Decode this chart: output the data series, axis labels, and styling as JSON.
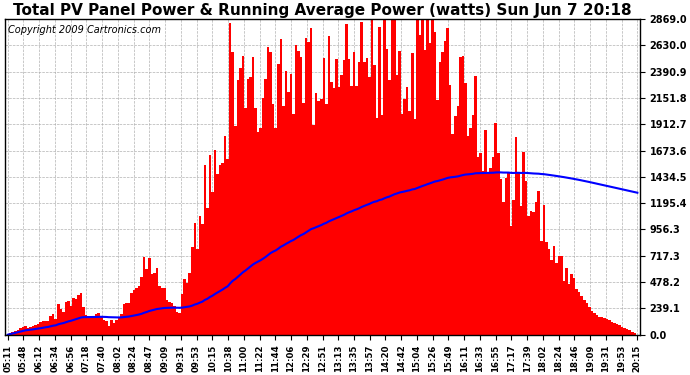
{
  "title": "Total PV Panel Power & Running Average Power (watts) Sun Jun 7 20:18",
  "copyright": "Copyright 2009 Cartronics.com",
  "yticks": [
    0.0,
    239.1,
    478.2,
    717.3,
    956.3,
    1195.4,
    1434.5,
    1673.6,
    1912.7,
    2151.8,
    2390.9,
    2630.0,
    2869.0
  ],
  "ymax": 2869.0,
  "xtick_labels": [
    "05:11",
    "05:48",
    "06:12",
    "06:34",
    "06:56",
    "07:18",
    "07:40",
    "08:02",
    "08:24",
    "08:47",
    "09:09",
    "09:31",
    "09:53",
    "10:15",
    "10:38",
    "11:00",
    "11:22",
    "11:44",
    "12:06",
    "12:29",
    "12:51",
    "13:13",
    "13:35",
    "13:57",
    "14:20",
    "14:42",
    "15:04",
    "15:26",
    "15:49",
    "16:11",
    "16:33",
    "16:55",
    "17:17",
    "17:39",
    "18:02",
    "18:24",
    "18:46",
    "19:09",
    "19:31",
    "19:53",
    "20:15"
  ],
  "n_xticks": 41,
  "bar_color": "#FF0000",
  "line_color": "#0000FF",
  "background_color": "#FFFFFF",
  "grid_color": "#AAAAAA",
  "title_fontsize": 11,
  "copyright_fontsize": 7
}
